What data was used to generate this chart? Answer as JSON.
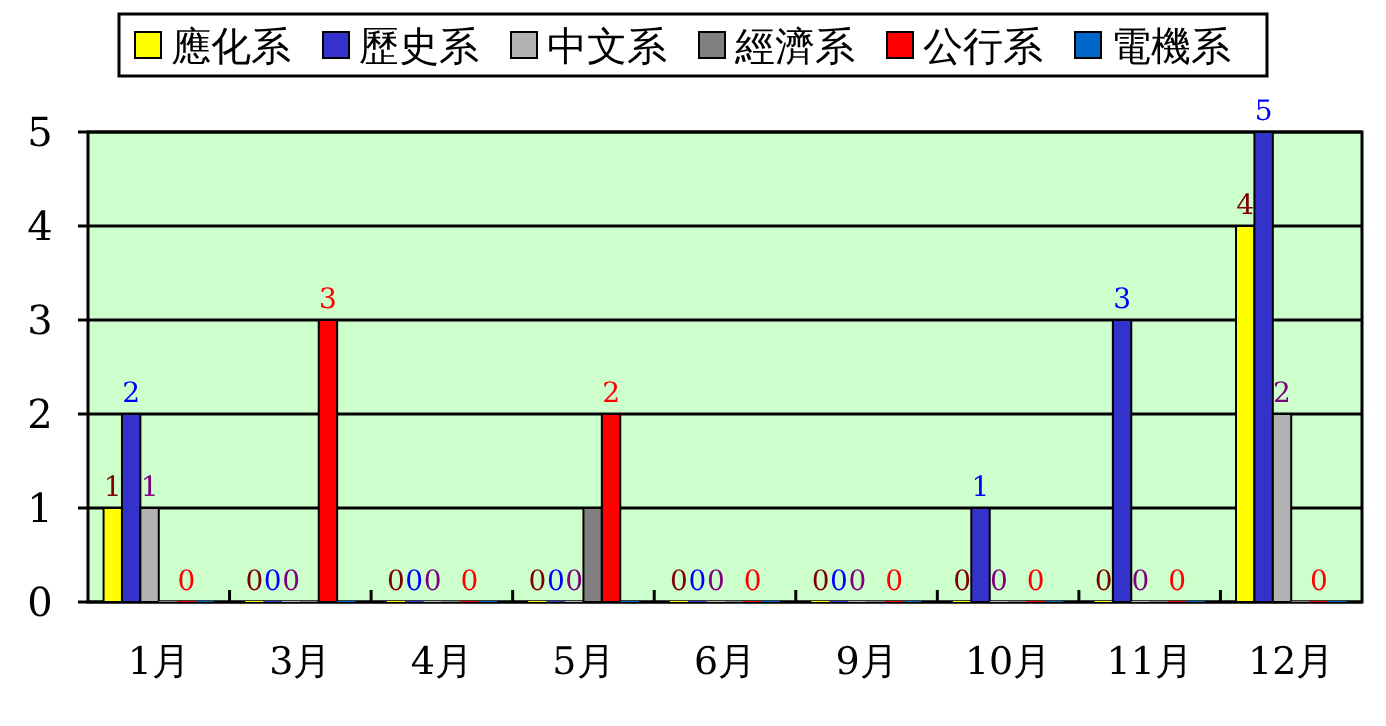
{
  "chart_data": {
    "type": "bar",
    "categories": [
      "1月",
      "3月",
      "4月",
      "5月",
      "6月",
      "9月",
      "10月",
      "11月",
      "12月"
    ],
    "series": [
      {
        "name": "應化系",
        "color": "#ffff00",
        "values": [
          1,
          0,
          0,
          0,
          0,
          0,
          0,
          0,
          4
        ],
        "value_labels": [
          "1",
          "0",
          "0",
          "0",
          "0",
          "0",
          "0",
          "0",
          "4"
        ]
      },
      {
        "name": "歷史系",
        "color": "#3333cc",
        "values": [
          2,
          0,
          0,
          0,
          0,
          0,
          1,
          3,
          5
        ],
        "value_labels": [
          "2",
          "0",
          "0",
          "0",
          "0",
          "0",
          "1",
          "3",
          "5"
        ]
      },
      {
        "name": "中文系",
        "color": "#b2b2b2",
        "values": [
          1,
          0,
          0,
          0,
          0,
          0,
          0,
          0,
          2
        ],
        "value_labels": [
          "1",
          "0",
          "0",
          "0",
          "0",
          "0",
          "0",
          "0",
          "2"
        ]
      },
      {
        "name": "經濟系",
        "color": "#808080",
        "values": [
          0,
          0,
          0,
          1,
          0,
          0,
          0,
          0,
          0
        ],
        "value_labels": [
          null,
          null,
          null,
          null,
          null,
          null,
          null,
          null,
          null
        ]
      },
      {
        "name": "公行系",
        "color": "#ff0000",
        "values": [
          0,
          3,
          0,
          2,
          0,
          0,
          0,
          0,
          0
        ],
        "value_labels": [
          "0",
          "3",
          "0",
          "2",
          "0",
          "0",
          "0",
          "0",
          "0"
        ]
      },
      {
        "name": "電機系",
        "color": "#0066cc",
        "values": [
          0,
          0,
          0,
          0,
          0,
          0,
          0,
          0,
          0
        ],
        "value_labels": [
          null,
          null,
          null,
          null,
          null,
          null,
          null,
          null,
          null
        ]
      }
    ],
    "ylim": [
      0,
      5
    ],
    "yticks": [
      0,
      1,
      2,
      3,
      4,
      5
    ],
    "grid": "y",
    "legend": "top"
  }
}
